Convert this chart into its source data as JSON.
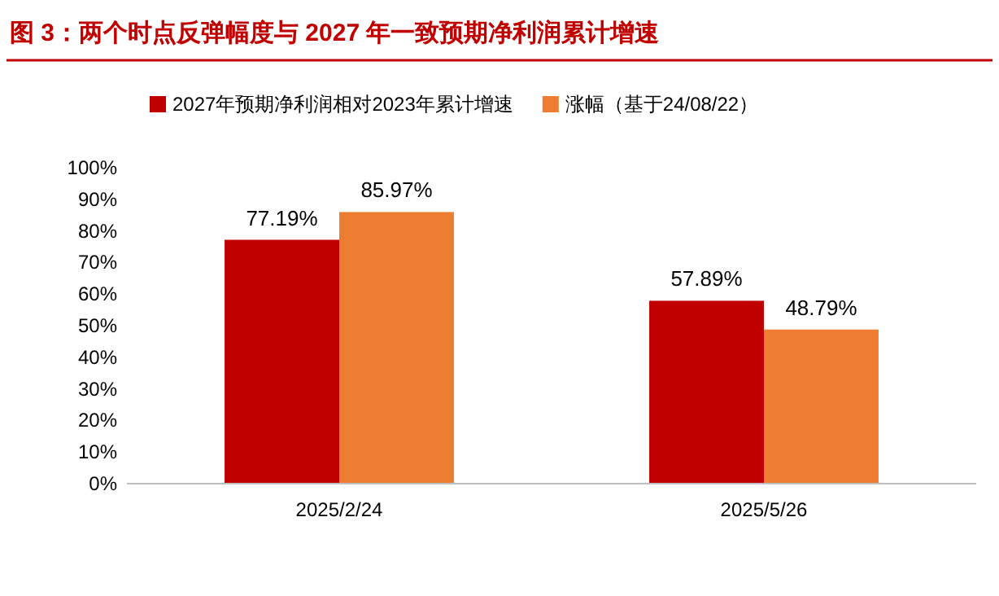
{
  "chart_data": {
    "type": "bar",
    "title": "图 3：两个时点反弹幅度与 2027 年一致预期净利润累计增速",
    "categories": [
      "2025/2/24",
      "2025/5/26"
    ],
    "series": [
      {
        "name": "2027年预期净利润相对2023年累计增速",
        "color": "#c00000",
        "values": [
          77.19,
          57.89
        ],
        "value_labels": [
          "77.19%",
          "57.89%"
        ]
      },
      {
        "name": "涨幅（基于24/08/22）",
        "color": "#ed7d31",
        "values": [
          85.97,
          48.79
        ],
        "value_labels": [
          "85.97%",
          "48.79%"
        ]
      }
    ],
    "ylim": [
      0,
      100
    ],
    "yticks": [
      {
        "value": 0,
        "label": "0%"
      },
      {
        "value": 10,
        "label": "10%"
      },
      {
        "value": 20,
        "label": "20%"
      },
      {
        "value": 30,
        "label": "30%"
      },
      {
        "value": 40,
        "label": "40%"
      },
      {
        "value": 50,
        "label": "50%"
      },
      {
        "value": 60,
        "label": "60%"
      },
      {
        "value": 70,
        "label": "70%"
      },
      {
        "value": 80,
        "label": "80%"
      },
      {
        "value": 90,
        "label": "90%"
      },
      {
        "value": 100,
        "label": "100%"
      }
    ],
    "grid": false,
    "legend": "top left"
  }
}
